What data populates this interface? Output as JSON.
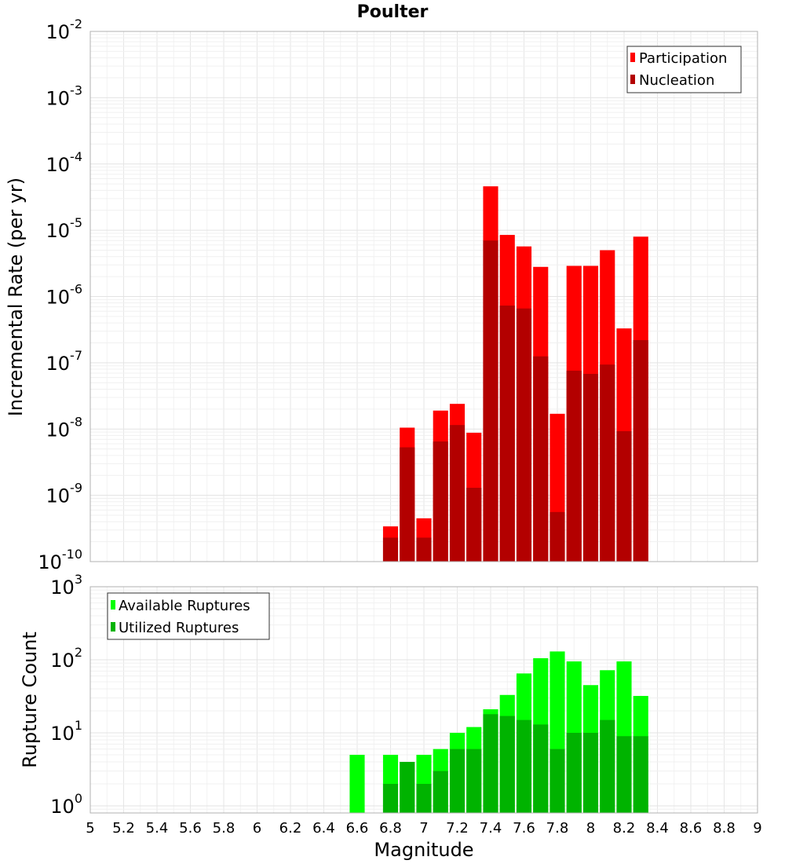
{
  "chart_data": [
    {
      "type": "bar",
      "title": "Poulter",
      "ylabel": "Incremental Rate (per yr)",
      "yscale": "log",
      "ylim": [
        1e-10,
        0.01
      ],
      "xlim": [
        5,
        9
      ],
      "bar_width": 0.09,
      "x": [
        6.8,
        6.9,
        7.0,
        7.1,
        7.2,
        7.3,
        7.4,
        7.5,
        7.6,
        7.7,
        7.8,
        7.9,
        8.0,
        8.1,
        8.2,
        8.3
      ],
      "series": [
        {
          "name": "Participation",
          "color": "#ff0000",
          "values": [
            3.4e-10,
            1.05e-08,
            4.5e-10,
            1.9e-08,
            2.4e-08,
            8.8e-09,
            4.6e-05,
            8.5e-06,
            5.7e-06,
            2.8e-06,
            1.7e-08,
            2.9e-06,
            2.9e-06,
            5e-06,
            3.3e-07,
            8e-06
          ]
        },
        {
          "name": "Nucleation",
          "color": "#b30000",
          "values": [
            2.3e-10,
            5.3e-09,
            2.3e-10,
            6.5e-09,
            1.15e-08,
            1.3e-09,
            7e-06,
            7.3e-07,
            6.6e-07,
            1.25e-07,
            5.6e-10,
            7.6e-08,
            6.8e-08,
            9.4e-08,
            9.3e-09,
            2.2e-07
          ]
        }
      ],
      "legend": "top-right",
      "grid": true
    },
    {
      "type": "bar",
      "ylabel": "Rupture Count",
      "xlabel": "Magnitude",
      "yscale": "log",
      "ylim": [
        0.8,
        1000
      ],
      "xlim": [
        5,
        9
      ],
      "bar_width": 0.09,
      "x": [
        6.6,
        6.8,
        6.9,
        7.0,
        7.1,
        7.2,
        7.3,
        7.4,
        7.5,
        7.6,
        7.7,
        7.8,
        7.9,
        8.0,
        8.1,
        8.2,
        8.3
      ],
      "series": [
        {
          "name": "Available Ruptures",
          "color": "#00ff00",
          "values": [
            5,
            5,
            4,
            5,
            6,
            10,
            12,
            21,
            33,
            65,
            105,
            130,
            95,
            45,
            72,
            95,
            32
          ]
        },
        {
          "name": "Utilized Ruptures",
          "color": "#00b300",
          "values": [
            0,
            2,
            4,
            2,
            3,
            6,
            6,
            18,
            17,
            15,
            13,
            6,
            10,
            10,
            15,
            9,
            9
          ]
        }
      ],
      "legend": "top-left",
      "grid": true
    }
  ],
  "x_ticks": [
    "5",
    "5.2",
    "5.4",
    "5.6",
    "5.8",
    "6",
    "6.2",
    "6.4",
    "6.6",
    "6.8",
    "7",
    "7.2",
    "7.4",
    "7.6",
    "7.8",
    "8",
    "8.2",
    "8.4",
    "8.6",
    "8.8",
    "9"
  ],
  "top_y_ticks": [
    {
      "base": "10",
      "exp": "-10"
    },
    {
      "base": "10",
      "exp": "-9"
    },
    {
      "base": "10",
      "exp": "-8"
    },
    {
      "base": "10",
      "exp": "-7"
    },
    {
      "base": "10",
      "exp": "-6"
    },
    {
      "base": "10",
      "exp": "-5"
    },
    {
      "base": "10",
      "exp": "-4"
    },
    {
      "base": "10",
      "exp": "-3"
    },
    {
      "base": "10",
      "exp": "-2"
    }
  ],
  "bottom_y_ticks": [
    {
      "base": "10",
      "exp": "0"
    },
    {
      "base": "10",
      "exp": "1"
    },
    {
      "base": "10",
      "exp": "2"
    },
    {
      "base": "10",
      "exp": "3"
    }
  ]
}
